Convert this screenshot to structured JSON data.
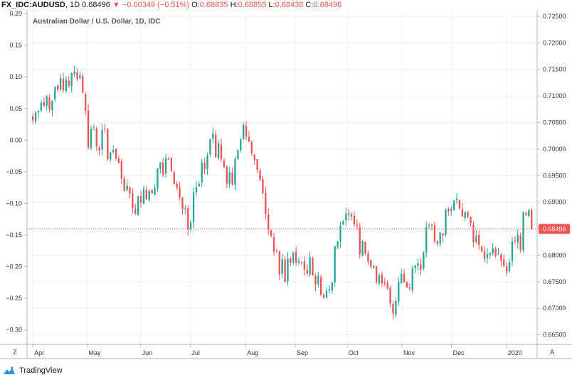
{
  "header": {
    "symbol": "FX_IDC:AUDUSD",
    "interval": "1D",
    "last": "0.68496",
    "arrow": "▼",
    "change": "−0.00349 (−0.51%)",
    "open_label": "O:",
    "open": "0.68835",
    "high_label": "H:",
    "high": "0.68855",
    "low_label": "L:",
    "low": "0.68436",
    "close_label": "C:",
    "close": "0.68496"
  },
  "footer": {
    "brand": "TradingView",
    "zoom_button": "Z",
    "auto_button": "A"
  },
  "colors": {
    "up": "#26a69a",
    "down": "#ef5350",
    "grid": "#eef0f3",
    "border": "#b2b5be",
    "last_line": "#ef5350"
  },
  "chart_data": {
    "type": "candlestick",
    "title": "Australian Dollar / U.S. Dollar, 1D, IDC",
    "left_axis": {
      "ticks": [
        "0.20",
        "0.15",
        "0.10",
        "0.05",
        "0.00",
        "−0.05",
        "−0.10",
        "−0.15",
        "−0.20",
        "−0.25",
        "−0.30"
      ],
      "range": [
        -0.3228,
        0.2057
      ]
    },
    "right_axis": {
      "ticks": [
        "0.72500",
        "0.72000",
        "0.71500",
        "0.71000",
        "0.70500",
        "0.70000",
        "0.69500",
        "0.69000",
        "0.68500",
        "0.68000",
        "0.67500",
        "0.67000",
        "0.66500"
      ],
      "range": [
        0.6632,
        0.7262
      ]
    },
    "x_axis": {
      "labels": [
        "Apr",
        "May",
        "Jun",
        "Jul",
        "Aug",
        "Sep",
        "Oct",
        "Nov",
        "Dec",
        "2020"
      ],
      "label_positions": [
        0,
        19.6,
        38.9,
        56.8,
        76.8,
        94.7,
        113.4,
        133.2,
        151.1,
        170.9
      ],
      "range": [
        -2.1,
        182
      ]
    },
    "last_price": 0.68496,
    "last_price_label": "0.68496",
    "grid": true,
    "close_series": [
      0.7054,
      0.7069,
      0.7072,
      0.7087,
      0.7081,
      0.7099,
      0.7075,
      0.7091,
      0.7117,
      0.7112,
      0.7134,
      0.7111,
      0.7131,
      0.7119,
      0.7143,
      0.7146,
      0.7132,
      0.7139,
      0.7106,
      0.7072,
      0.7003,
      0.7038,
      0.7041,
      0.7005,
      0.6997,
      0.7036,
      0.7038,
      0.6981,
      0.6993,
      0.6998,
      0.6982,
      0.6974,
      0.6944,
      0.6921,
      0.6931,
      0.6916,
      0.6889,
      0.6878,
      0.6911,
      0.6899,
      0.6925,
      0.6905,
      0.6921,
      0.6917,
      0.6926,
      0.6963,
      0.6975,
      0.6951,
      0.6983,
      0.6981,
      0.6958,
      0.6934,
      0.6927,
      0.6909,
      0.6887,
      0.6888,
      0.6848,
      0.6861,
      0.6918,
      0.6928,
      0.6934,
      0.6975,
      0.6962,
      0.6988,
      0.7019,
      0.7029,
      0.6985,
      0.7011,
      0.6981,
      0.6966,
      0.6935,
      0.6956,
      0.6933,
      0.6981,
      0.6998,
      0.7018,
      0.7046,
      0.7023,
      0.7014,
      0.6992,
      0.6979,
      0.6961,
      0.6942,
      0.6917,
      0.6878,
      0.6848,
      0.6836,
      0.6806,
      0.6808,
      0.6764,
      0.6793,
      0.675,
      0.6794,
      0.6786,
      0.6805,
      0.6786,
      0.6789,
      0.6786,
      0.6773,
      0.6766,
      0.6796,
      0.6762,
      0.6744,
      0.6761,
      0.6725,
      0.672,
      0.6733,
      0.6736,
      0.6749,
      0.6817,
      0.6826,
      0.6855,
      0.6864,
      0.6878,
      0.6876,
      0.6877,
      0.6858,
      0.6855,
      0.6802,
      0.6826,
      0.6803,
      0.6788,
      0.6779,
      0.678,
      0.6749,
      0.6762,
      0.6747,
      0.6746,
      0.6737,
      0.6709,
      0.669,
      0.6714,
      0.6749,
      0.6765,
      0.6749,
      0.6739,
      0.6737,
      0.6775,
      0.6781,
      0.6785,
      0.6772,
      0.6805,
      0.6853,
      0.6856,
      0.6856,
      0.6826,
      0.6822,
      0.6843,
      0.6837,
      0.6885,
      0.6883,
      0.6887,
      0.6903,
      0.6907,
      0.6888,
      0.6873,
      0.6881,
      0.6872,
      0.686,
      0.6824,
      0.6836,
      0.6819,
      0.6808,
      0.6793,
      0.6802,
      0.6804,
      0.6813,
      0.6799,
      0.6802,
      0.6789,
      0.678,
      0.6768,
      0.6787,
      0.6826,
      0.6827,
      0.6839,
      0.681,
      0.6881,
      0.6876,
      0.6885,
      0.6849
    ]
  }
}
